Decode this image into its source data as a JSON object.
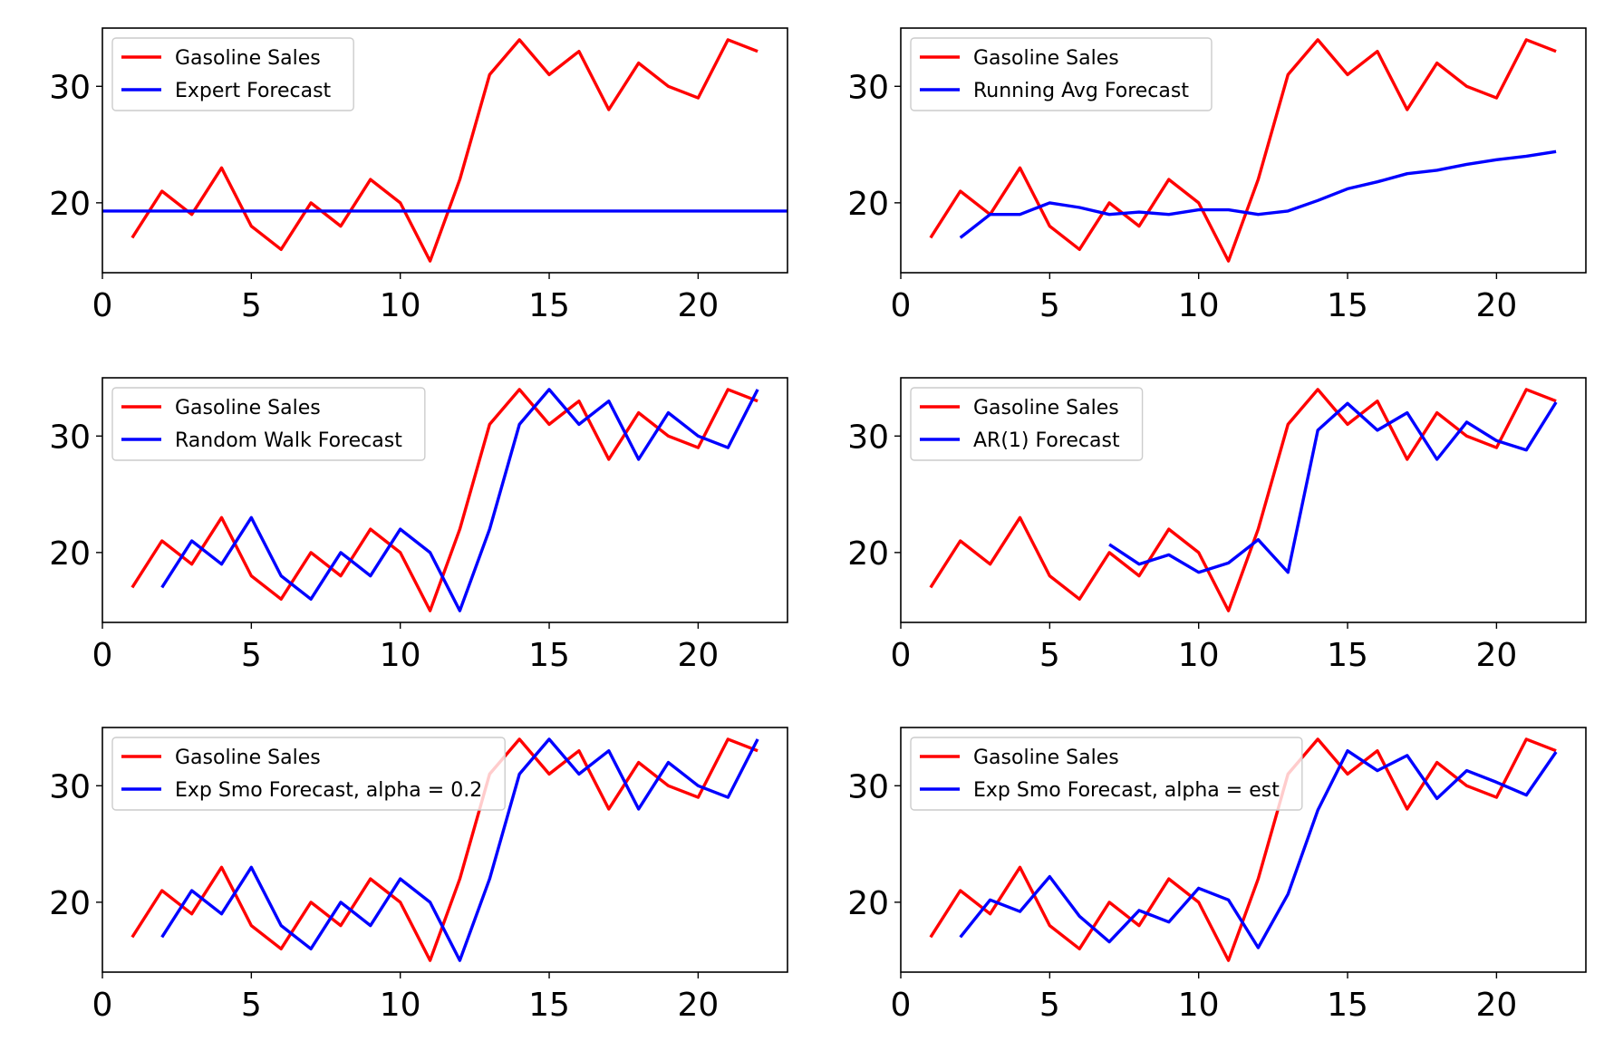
{
  "colors": {
    "actual": "#ff0000",
    "forecast": "#0000ff"
  },
  "chart_data": [
    {
      "type": "line",
      "xlim": [
        0,
        23
      ],
      "ylim": [
        14,
        35
      ],
      "xticks": [
        0,
        5,
        10,
        15,
        20
      ],
      "yticks": [
        20,
        30
      ],
      "legend": "top-left",
      "series": [
        {
          "name": "Gasoline Sales",
          "color": "#ff0000",
          "x": [
            1,
            2,
            3,
            4,
            5,
            6,
            7,
            8,
            9,
            10,
            11,
            12,
            13,
            14,
            15,
            16,
            17,
            18,
            19,
            20,
            21,
            22
          ],
          "y": [
            17,
            21,
            19,
            23,
            18,
            16,
            20,
            18,
            22,
            20,
            15,
            22,
            31,
            34,
            31,
            33,
            28,
            32,
            30,
            29,
            34,
            33
          ]
        },
        {
          "name": "Expert Forecast",
          "color": "#0000ff",
          "x": [
            0,
            23
          ],
          "y": [
            19.3,
            19.3
          ]
        }
      ]
    },
    {
      "type": "line",
      "xlim": [
        0,
        23
      ],
      "ylim": [
        14,
        35
      ],
      "xticks": [
        0,
        5,
        10,
        15,
        20
      ],
      "yticks": [
        20,
        30
      ],
      "legend": "top-left",
      "series": [
        {
          "name": "Gasoline Sales",
          "color": "#ff0000",
          "x": [
            1,
            2,
            3,
            4,
            5,
            6,
            7,
            8,
            9,
            10,
            11,
            12,
            13,
            14,
            15,
            16,
            17,
            18,
            19,
            20,
            21,
            22
          ],
          "y": [
            17,
            21,
            19,
            23,
            18,
            16,
            20,
            18,
            22,
            20,
            15,
            22,
            31,
            34,
            31,
            33,
            28,
            32,
            30,
            29,
            34,
            33
          ]
        },
        {
          "name": "Running Avg Forecast",
          "color": "#0000ff",
          "x": [
            2,
            3,
            4,
            5,
            6,
            7,
            8,
            9,
            10,
            11,
            12,
            13,
            14,
            15,
            16,
            17,
            18,
            19,
            20,
            21,
            22
          ],
          "y": [
            17,
            19,
            19,
            20,
            19.6,
            19,
            19.2,
            19,
            19.4,
            19.4,
            19,
            19.3,
            20.2,
            21.2,
            21.8,
            22.5,
            22.8,
            23.3,
            23.7,
            24,
            24.4
          ]
        }
      ]
    },
    {
      "type": "line",
      "xlim": [
        0,
        23
      ],
      "ylim": [
        14,
        35
      ],
      "xticks": [
        0,
        5,
        10,
        15,
        20
      ],
      "yticks": [
        20,
        30
      ],
      "legend": "top-left",
      "series": [
        {
          "name": "Gasoline Sales",
          "color": "#ff0000",
          "x": [
            1,
            2,
            3,
            4,
            5,
            6,
            7,
            8,
            9,
            10,
            11,
            12,
            13,
            14,
            15,
            16,
            17,
            18,
            19,
            20,
            21,
            22
          ],
          "y": [
            17,
            21,
            19,
            23,
            18,
            16,
            20,
            18,
            22,
            20,
            15,
            22,
            31,
            34,
            31,
            33,
            28,
            32,
            30,
            29,
            34,
            33
          ]
        },
        {
          "name": "Random Walk Forecast",
          "color": "#0000ff",
          "x": [
            2,
            3,
            4,
            5,
            6,
            7,
            8,
            9,
            10,
            11,
            12,
            13,
            14,
            15,
            16,
            17,
            18,
            19,
            20,
            21,
            22
          ],
          "y": [
            17,
            21,
            19,
            23,
            18,
            16,
            20,
            18,
            22,
            20,
            15,
            22,
            31,
            34,
            31,
            33,
            28,
            32,
            30,
            29,
            34
          ]
        }
      ]
    },
    {
      "type": "line",
      "xlim": [
        0,
        23
      ],
      "ylim": [
        14,
        35
      ],
      "xticks": [
        0,
        5,
        10,
        15,
        20
      ],
      "yticks": [
        20,
        30
      ],
      "legend": "top-left",
      "series": [
        {
          "name": "Gasoline Sales",
          "color": "#ff0000",
          "x": [
            1,
            2,
            3,
            4,
            5,
            6,
            7,
            8,
            9,
            10,
            11,
            12,
            13,
            14,
            15,
            16,
            17,
            18,
            19,
            20,
            21,
            22
          ],
          "y": [
            17,
            21,
            19,
            23,
            18,
            16,
            20,
            18,
            22,
            20,
            15,
            22,
            31,
            34,
            31,
            33,
            28,
            32,
            30,
            29,
            34,
            33
          ]
        },
        {
          "name": "AR(1) Forecast",
          "color": "#0000ff",
          "x": [
            7,
            8,
            9,
            10,
            11,
            12,
            13,
            14,
            15,
            16,
            17,
            18,
            19,
            20,
            21,
            22
          ],
          "y": [
            20.7,
            19,
            19.8,
            18.3,
            19.1,
            21.1,
            18.3,
            30.5,
            32.8,
            30.5,
            32,
            28,
            31.2,
            29.6,
            28.8,
            32.9
          ]
        }
      ]
    },
    {
      "type": "line",
      "xlim": [
        0,
        23
      ],
      "ylim": [
        14,
        35
      ],
      "xticks": [
        0,
        5,
        10,
        15,
        20
      ],
      "yticks": [
        20,
        30
      ],
      "legend": "top-left",
      "series": [
        {
          "name": "Gasoline Sales",
          "color": "#ff0000",
          "x": [
            1,
            2,
            3,
            4,
            5,
            6,
            7,
            8,
            9,
            10,
            11,
            12,
            13,
            14,
            15,
            16,
            17,
            18,
            19,
            20,
            21,
            22
          ],
          "y": [
            17,
            21,
            19,
            23,
            18,
            16,
            20,
            18,
            22,
            20,
            15,
            22,
            31,
            34,
            31,
            33,
            28,
            32,
            30,
            29,
            34,
            33
          ]
        },
        {
          "name": "Exp Smo Forecast, alpha = 0.2",
          "color": "#0000ff",
          "x": [
            2,
            3,
            4,
            5,
            6,
            7,
            8,
            9,
            10,
            11,
            12,
            13,
            14,
            15,
            16,
            17,
            18,
            19,
            20,
            21,
            22
          ],
          "y": [
            17,
            21,
            19,
            23,
            18,
            16,
            20,
            18,
            22,
            20,
            15,
            22,
            31,
            34,
            31,
            33,
            28,
            32,
            30,
            29,
            34
          ]
        }
      ]
    },
    {
      "type": "line",
      "xlim": [
        0,
        23
      ],
      "ylim": [
        14,
        35
      ],
      "xticks": [
        0,
        5,
        10,
        15,
        20
      ],
      "yticks": [
        20,
        30
      ],
      "legend": "top-left",
      "series": [
        {
          "name": "Gasoline Sales",
          "color": "#ff0000",
          "x": [
            1,
            2,
            3,
            4,
            5,
            6,
            7,
            8,
            9,
            10,
            11,
            12,
            13,
            14,
            15,
            16,
            17,
            18,
            19,
            20,
            21,
            22
          ],
          "y": [
            17,
            21,
            19,
            23,
            18,
            16,
            20,
            18,
            22,
            20,
            15,
            22,
            31,
            34,
            31,
            33,
            28,
            32,
            30,
            29,
            34,
            33
          ]
        },
        {
          "name": "Exp Smo Forecast, alpha = est",
          "color": "#0000ff",
          "x": [
            2,
            3,
            4,
            5,
            6,
            7,
            8,
            9,
            10,
            11,
            12,
            13,
            14,
            15,
            16,
            17,
            18,
            19,
            20,
            21,
            22
          ],
          "y": [
            17,
            20.2,
            19.2,
            22.2,
            18.8,
            16.6,
            19.3,
            18.3,
            21.2,
            20.2,
            16.1,
            20.7,
            27.9,
            33,
            31.3,
            32.6,
            28.9,
            31.3,
            30.3,
            29.2,
            32.9
          ]
        }
      ]
    }
  ]
}
